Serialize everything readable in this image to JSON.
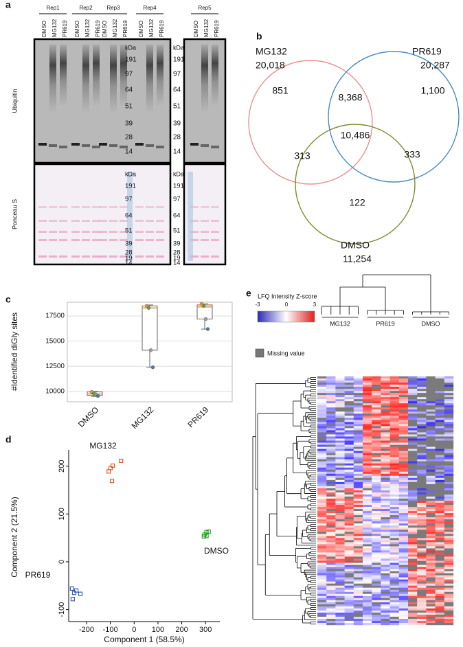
{
  "panel_labels": [
    "a",
    "b",
    "c",
    "d",
    "e"
  ],
  "blot": {
    "reps": [
      "Rep1",
      "Rep2",
      "Rep3",
      "Rep4",
      "Rep5"
    ],
    "lanes": [
      "DMSO",
      "MG132",
      "PR619"
    ],
    "stains": [
      "Ubiquitin",
      "Ponceau S"
    ],
    "kda_unit": "kDa",
    "ubiquitin_markers": [
      "191",
      "97",
      "64",
      "51",
      "39",
      "28",
      "14"
    ],
    "ponceau_markers": [
      "191",
      "97",
      "64",
      "51",
      "39",
      "28",
      "19",
      "14"
    ]
  },
  "venn": {
    "sets": [
      {
        "name": "MG132",
        "total": "20,018",
        "color": "#e8908f"
      },
      {
        "name": "PR619",
        "total": "20,287",
        "color": "#4a8ac0"
      },
      {
        "name": "DMSO",
        "total": "11,254",
        "color": "#7f8a2e"
      }
    ],
    "regions": [
      "851",
      "8,368",
      "1,100",
      "10,486",
      "313",
      "333",
      "122"
    ]
  },
  "chart_data": [
    {
      "type": "box",
      "ylabel": "#Identified diGly sites",
      "categories": [
        "DMSO",
        "MG132",
        "PR619"
      ],
      "ylim": [
        8970,
        18870
      ],
      "yticks": [
        10000,
        12500,
        15000,
        17500
      ],
      "grid": true,
      "boxes": [
        {
          "min": 9500,
          "q1": 9600,
          "median": 9750,
          "q3": 9950,
          "max": 10000
        },
        {
          "min": 12400,
          "q1": 14100,
          "median": 18300,
          "q3": 18500,
          "max": 18600
        },
        {
          "min": 16200,
          "q1": 17200,
          "median": 18400,
          "q3": 18600,
          "max": 18700
        }
      ],
      "points": [
        [
          9950,
          9800,
          9700,
          9550
        ],
        [
          18500,
          18300,
          14100,
          12400
        ],
        [
          18700,
          18500,
          17200,
          16200
        ]
      ],
      "point_colors": [
        "#f28e2b",
        "#59a14f",
        "#999999",
        "#4e79a7"
      ],
      "box_color": "#ffffff",
      "median_color": "#f28e2b"
    },
    {
      "type": "scatter",
      "xlabel": "Component 1 (58.5%)",
      "ylabel": "Component 2 (21.5%)",
      "xlim": [
        -275,
        360
      ],
      "ylim": [
        -125,
        234
      ],
      "xticks": [
        -200,
        -100,
        0,
        100,
        200,
        300
      ],
      "yticks": [
        -100,
        0,
        100,
        200
      ],
      "series": [
        {
          "name": "MG132",
          "color": "#e4572e",
          "x": [
            -107,
            -99,
            -90,
            -93,
            -55
          ],
          "values": [
            189,
            196,
            201,
            169,
            211
          ]
        },
        {
          "name": "PR619",
          "color": "#3a5fb0",
          "x": [
            -261,
            -252,
            -243,
            -226,
            -258
          ],
          "values": [
            -56,
            -65,
            -60,
            -67,
            -78
          ]
        },
        {
          "name": "DMSO",
          "color": "#2ca02c",
          "x": [
            296,
            304,
            313,
            293,
            304
          ],
          "values": [
            57,
            62,
            63,
            53,
            54
          ]
        }
      ]
    }
  ],
  "heatmap": {
    "legend_title": "LFQ Intensity Z-score",
    "scale_ticks": [
      "-3",
      "0",
      "3"
    ],
    "missing": "Missing value",
    "groups": [
      "MG132",
      "PR619",
      "DMSO"
    ]
  }
}
